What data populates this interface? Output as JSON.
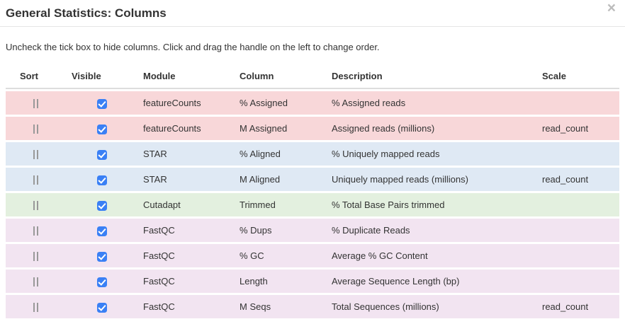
{
  "modal": {
    "title": "General Statistics: Columns",
    "close_glyph": "×",
    "instruction": "Uncheck the tick box to hide columns. Click and drag the handle on the left to change order.",
    "table": {
      "headers": [
        "Sort",
        "Visible",
        "Module",
        "Column",
        "Description",
        "Scale"
      ],
      "rows": [
        {
          "module": "featureCounts",
          "column": "% Assigned",
          "description": "% Assigned reads",
          "scale": "",
          "visible": true,
          "row_color": "#f8d7d9"
        },
        {
          "module": "featureCounts",
          "column": "M Assigned",
          "description": "Assigned reads (millions)",
          "scale": "read_count",
          "visible": true,
          "row_color": "#f8d7d9"
        },
        {
          "module": "STAR",
          "column": "% Aligned",
          "description": "% Uniquely mapped reads",
          "scale": "",
          "visible": true,
          "row_color": "#dfe9f4"
        },
        {
          "module": "STAR",
          "column": "M Aligned",
          "description": "Uniquely mapped reads (millions)",
          "scale": "read_count",
          "visible": true,
          "row_color": "#dfe9f4"
        },
        {
          "module": "Cutadapt",
          "column": "Trimmed",
          "description": "% Total Base Pairs trimmed",
          "scale": "",
          "visible": true,
          "row_color": "#e3f0df"
        },
        {
          "module": "FastQC",
          "column": "% Dups",
          "description": "% Duplicate Reads",
          "scale": "",
          "visible": true,
          "row_color": "#f2e4f1"
        },
        {
          "module": "FastQC",
          "column": "% GC",
          "description": "Average % GC Content",
          "scale": "",
          "visible": true,
          "row_color": "#f2e4f1"
        },
        {
          "module": "FastQC",
          "column": "Length",
          "description": "Average Sequence Length (bp)",
          "scale": "",
          "visible": true,
          "row_color": "#f2e4f1"
        },
        {
          "module": "FastQC",
          "column": "M Seqs",
          "description": "Total Sequences (millions)",
          "scale": "read_count",
          "visible": true,
          "row_color": "#f2e4f1"
        }
      ]
    },
    "colors": {
      "checkbox": "#3a80f5",
      "drag_handle": "#999999",
      "header_border": "#dddddd",
      "divider": "#e5e5e5",
      "close_icon": "#bcbcbc",
      "text": "#333333"
    }
  }
}
